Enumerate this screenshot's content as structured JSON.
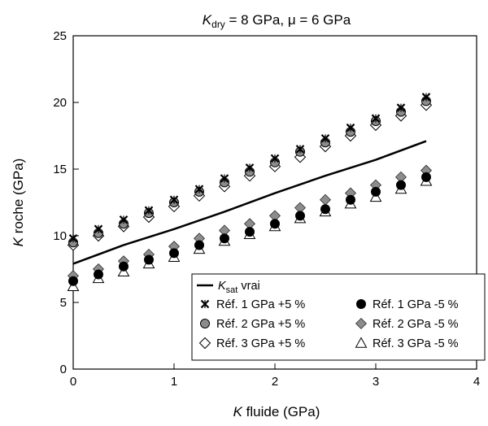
{
  "chart_data": {
    "type": "scatter",
    "title": {
      "k": "K",
      "dry_sub": "dry",
      "rest": " = 8 GPa, μ = 6 GPa"
    },
    "xlabel": {
      "k": "K",
      "rest": " fluide (GPa)"
    },
    "ylabel": {
      "k": "K",
      "rest": " roche (GPa)"
    },
    "xlim": [
      0,
      4
    ],
    "ylim": [
      0,
      25
    ],
    "xticks": [
      "0",
      "1",
      "2",
      "3",
      "4"
    ],
    "yticks": [
      "0",
      "5",
      "10",
      "15",
      "20",
      "25"
    ],
    "x": [
      0,
      0.25,
      0.5,
      0.75,
      1.0,
      1.25,
      1.5,
      1.75,
      2.0,
      2.25,
      2.5,
      2.75,
      3.0,
      3.25,
      3.5
    ],
    "line": {
      "label_k": "K",
      "label_sub": "sat",
      "label_rest": " vrai",
      "x": [
        0,
        0.5,
        1.0,
        1.5,
        2.0,
        2.5,
        3.0,
        3.5
      ],
      "y": [
        7.9,
        9.3,
        10.5,
        11.8,
        13.2,
        14.5,
        15.7,
        17.1
      ]
    },
    "series": [
      {
        "name": "Réf. 1 GPa +5 %",
        "marker": "x",
        "y": [
          9.8,
          10.5,
          11.2,
          11.9,
          12.7,
          13.5,
          14.3,
          15.1,
          15.8,
          16.5,
          17.3,
          18.1,
          18.8,
          19.6,
          20.4
        ]
      },
      {
        "name": "Réf. 2 GPa +5 %",
        "marker": "circle-gray",
        "y": [
          9.5,
          10.2,
          10.9,
          11.7,
          12.5,
          13.3,
          14.0,
          14.8,
          15.5,
          16.3,
          17.0,
          17.8,
          18.6,
          19.3,
          20.1
        ]
      },
      {
        "name": "Réf. 3 GPa +5 %",
        "marker": "diamond-open",
        "y": [
          9.3,
          10.0,
          10.7,
          11.4,
          12.2,
          13.0,
          13.7,
          14.5,
          15.2,
          15.9,
          16.7,
          17.5,
          18.3,
          19.0,
          19.8
        ]
      },
      {
        "name": "Réf. 1 GPa -5 %",
        "marker": "circle-black",
        "y": [
          6.6,
          7.1,
          7.7,
          8.2,
          8.7,
          9.3,
          9.8,
          10.3,
          10.9,
          11.5,
          12.0,
          12.7,
          13.3,
          13.8,
          14.4
        ]
      },
      {
        "name": "Réf. 2 GPa -5 %",
        "marker": "diamond-gray",
        "y": [
          7.0,
          7.5,
          8.1,
          8.6,
          9.2,
          9.8,
          10.4,
          10.9,
          11.5,
          12.1,
          12.7,
          13.2,
          13.8,
          14.4,
          14.9
        ]
      },
      {
        "name": "Réf. 3 GPa -5 %",
        "marker": "triangle-open",
        "y": [
          6.2,
          6.8,
          7.3,
          7.9,
          8.4,
          9.0,
          9.6,
          10.1,
          10.7,
          11.3,
          11.8,
          12.4,
          12.9,
          13.5,
          14.1
        ]
      }
    ],
    "legend_placement": "bottom-right",
    "grid": false
  }
}
